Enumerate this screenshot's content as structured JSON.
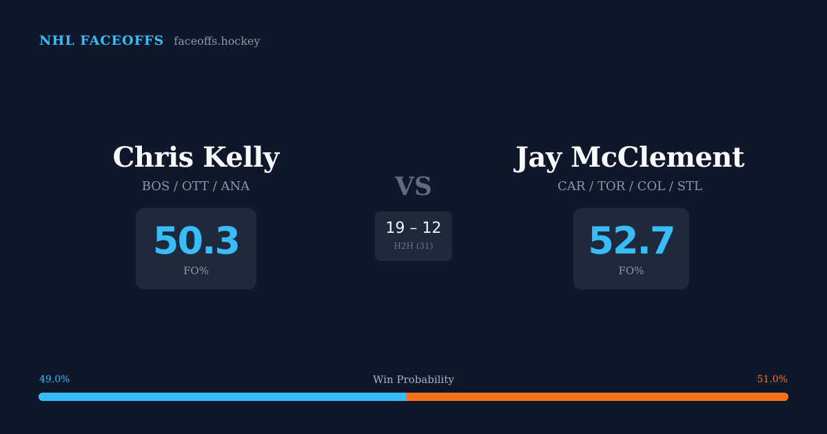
{
  "brand": {
    "title": "NHL FACEOFFS",
    "site": "faceoffs.hockey"
  },
  "player_left": {
    "name": "Chris Kelly",
    "teams": "BOS / OTT / ANA",
    "fo_pct": "50.3",
    "fo_label": "FO%"
  },
  "player_right": {
    "name": "Jay McClement",
    "teams": "CAR / TOR / COL / STL",
    "fo_pct": "52.7",
    "fo_label": "FO%"
  },
  "matchup": {
    "vs": "VS",
    "h2h_score": "19 – 12",
    "h2h_label": "H2H (31)"
  },
  "win_probability": {
    "title": "Win Probability",
    "left_label": "49.0%",
    "right_label": "51.0%",
    "left_fraction": 0.49,
    "colors": {
      "left": "#38bdf8",
      "right": "#f97316"
    }
  },
  "theme": {
    "background": "#0f172a",
    "card": "#1e293b",
    "accent": "#38bdf8",
    "muted": "#8b98ab"
  }
}
